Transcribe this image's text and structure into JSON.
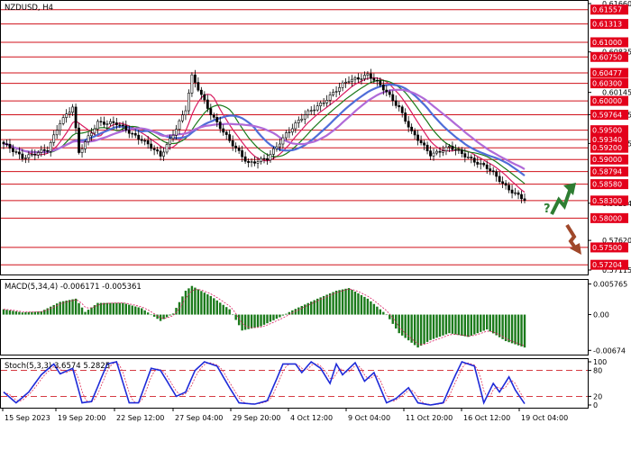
{
  "chart_data": [
    {
      "type": "candlestick",
      "title": "NZDUSD, H4",
      "x_tick_labels": [
        "15 Sep 2023",
        "19 Sep 20:00",
        "22 Sep 12:00",
        "27 Sep 04:00",
        "29 Sep 20:00",
        "4 Oct 12:00",
        "9 Oct 04:00",
        "11 Oct 20:00",
        "16 Oct 12:00",
        "19 Oct 04:00"
      ],
      "ylim": [
        0.57115,
        0.6166
      ],
      "y_tick_labels": [
        {
          "value": 0.6166,
          "text": "0.61660"
        },
        {
          "value": 0.60835,
          "text": "0.60835"
        },
        {
          "value": 0.60145,
          "text": "0.60145"
        },
        {
          "value": 0.59765,
          "text": "0.59765"
        },
        {
          "value": 0.59275,
          "text": "0.59275"
        },
        {
          "value": 0.58254,
          "text": "0.58254"
        },
        {
          "value": 0.5762,
          "text": "0.57620"
        },
        {
          "value": 0.57115,
          "text": "0.57115"
        }
      ],
      "levels": [
        {
          "value": 0.61557,
          "text": "0.61557"
        },
        {
          "value": 0.61313,
          "text": "0.61313"
        },
        {
          "value": 0.61,
          "text": "0.61000"
        },
        {
          "value": 0.6075,
          "text": "0.60750"
        },
        {
          "value": 0.60477,
          "text": "0.60477"
        },
        {
          "value": 0.603,
          "text": "0.60300"
        },
        {
          "value": 0.6,
          "text": "0.60000"
        },
        {
          "value": 0.59764,
          "text": "0.59764"
        },
        {
          "value": 0.595,
          "text": "0.59500"
        },
        {
          "value": 0.5934,
          "text": "0.59340"
        },
        {
          "value": 0.592,
          "text": "0.59200"
        },
        {
          "value": 0.59,
          "text": "0.59000"
        },
        {
          "value": 0.58794,
          "text": "0.58794"
        },
        {
          "value": 0.5858,
          "text": "0.58580"
        },
        {
          "value": 0.583,
          "text": "0.58300"
        },
        {
          "value": 0.58,
          "text": "0.58000"
        },
        {
          "value": 0.575,
          "text": "0.57500"
        },
        {
          "value": 0.57204,
          "text": "0.57204"
        }
      ],
      "price_anchors": [
        [
          0,
          0.5925
        ],
        [
          6,
          0.5905
        ],
        [
          14,
          0.5915
        ],
        [
          18,
          0.5965
        ],
        [
          22,
          0.599
        ],
        [
          24,
          0.591
        ],
        [
          30,
          0.5965
        ],
        [
          36,
          0.596
        ],
        [
          44,
          0.5935
        ],
        [
          50,
          0.5905
        ],
        [
          58,
          0.5985
        ],
        [
          60,
          0.604
        ],
        [
          66,
          0.598
        ],
        [
          72,
          0.593
        ],
        [
          78,
          0.5895
        ],
        [
          84,
          0.59
        ],
        [
          90,
          0.5945
        ],
        [
          96,
          0.5975
        ],
        [
          102,
          0.6
        ],
        [
          110,
          0.6035
        ],
        [
          116,
          0.6045
        ],
        [
          122,
          0.6015
        ],
        [
          126,
          0.599
        ],
        [
          130,
          0.5945
        ],
        [
          136,
          0.591
        ],
        [
          142,
          0.592
        ],
        [
          148,
          0.5905
        ],
        [
          154,
          0.5885
        ],
        [
          160,
          0.5855
        ],
        [
          166,
          0.583
        ]
      ],
      "moving_average_colors": [
        "#d81b60",
        "#1b7a1b",
        "#4f6dd8",
        "#b06ad8"
      ],
      "candle_colors": {
        "up": "#000000",
        "down": "#000000"
      },
      "annotations": [
        "up-arrow",
        "question-mark",
        "down-arrow"
      ],
      "annotation_colors": {
        "up": "#2e7d32",
        "down": "#a0482a"
      }
    },
    {
      "type": "bar",
      "title": "MACD(5,34,4) -0.006171 -0.005361",
      "ylim": [
        -0.0072,
        0.0062
      ],
      "y_tick_labels": [
        {
          "value": 0.005765,
          "text": "0.005765"
        },
        {
          "value": 0.0,
          "text": "0.00"
        },
        {
          "value": -0.00674,
          "text": "-0.00674"
        }
      ],
      "histogram_anchors": [
        [
          0,
          0.001
        ],
        [
          6,
          0.0004
        ],
        [
          12,
          0.0006
        ],
        [
          18,
          0.0024
        ],
        [
          23,
          0.003
        ],
        [
          26,
          0.0005
        ],
        [
          30,
          0.0022
        ],
        [
          38,
          0.0022
        ],
        [
          44,
          0.0012
        ],
        [
          50,
          -0.0012
        ],
        [
          54,
          0.0002
        ],
        [
          58,
          0.0045
        ],
        [
          60,
          0.0054
        ],
        [
          66,
          0.0035
        ],
        [
          72,
          0.001
        ],
        [
          76,
          -0.003
        ],
        [
          82,
          -0.0022
        ],
        [
          88,
          -0.0005
        ],
        [
          92,
          0.0008
        ],
        [
          100,
          0.003
        ],
        [
          106,
          0.0045
        ],
        [
          110,
          0.005
        ],
        [
          116,
          0.003
        ],
        [
          122,
          0.0
        ],
        [
          126,
          -0.0035
        ],
        [
          132,
          -0.0062
        ],
        [
          136,
          -0.0048
        ],
        [
          142,
          -0.0035
        ],
        [
          148,
          -0.0042
        ],
        [
          154,
          -0.0028
        ],
        [
          160,
          -0.005
        ],
        [
          166,
          -0.0062
        ]
      ],
      "colors": {
        "histogram": "#1a7a1a",
        "signal": "#d81b60"
      }
    },
    {
      "type": "line",
      "title": "Stoch(5,3,3) 3.6574 5.2825",
      "ylim": [
        0,
        100
      ],
      "y_tick_labels": [
        {
          "value": 100,
          "text": "100"
        },
        {
          "value": 80,
          "text": "80"
        },
        {
          "value": 20,
          "text": "20"
        },
        {
          "value": 0,
          "text": "0"
        }
      ],
      "levels": [
        80,
        20
      ],
      "k_anchors": [
        [
          0,
          30
        ],
        [
          4,
          5
        ],
        [
          8,
          30
        ],
        [
          12,
          70
        ],
        [
          16,
          95
        ],
        [
          18,
          72
        ],
        [
          22,
          85
        ],
        [
          25,
          5
        ],
        [
          28,
          8
        ],
        [
          33,
          95
        ],
        [
          36,
          100
        ],
        [
          40,
          5
        ],
        [
          43,
          5
        ],
        [
          47,
          85
        ],
        [
          50,
          80
        ],
        [
          55,
          20
        ],
        [
          58,
          30
        ],
        [
          61,
          80
        ],
        [
          64,
          100
        ],
        [
          68,
          90
        ],
        [
          72,
          40
        ],
        [
          75,
          5
        ],
        [
          80,
          2
        ],
        [
          84,
          10
        ],
        [
          87,
          60
        ],
        [
          89,
          95
        ],
        [
          93,
          95
        ],
        [
          95,
          75
        ],
        [
          98,
          100
        ],
        [
          101,
          85
        ],
        [
          104,
          50
        ],
        [
          106,
          95
        ],
        [
          108,
          70
        ],
        [
          112,
          98
        ],
        [
          115,
          55
        ],
        [
          118,
          75
        ],
        [
          122,
          5
        ],
        [
          125,
          15
        ],
        [
          129,
          40
        ],
        [
          132,
          5
        ],
        [
          136,
          0
        ],
        [
          140,
          5
        ],
        [
          144,
          70
        ],
        [
          146,
          100
        ],
        [
          150,
          90
        ],
        [
          153,
          5
        ],
        [
          156,
          50
        ],
        [
          158,
          30
        ],
        [
          161,
          65
        ],
        [
          163,
          35
        ],
        [
          166,
          3
        ]
      ],
      "colors": {
        "k": "#1e2ad8",
        "d": "#e0345a",
        "levels": "#d0202a"
      }
    }
  ]
}
